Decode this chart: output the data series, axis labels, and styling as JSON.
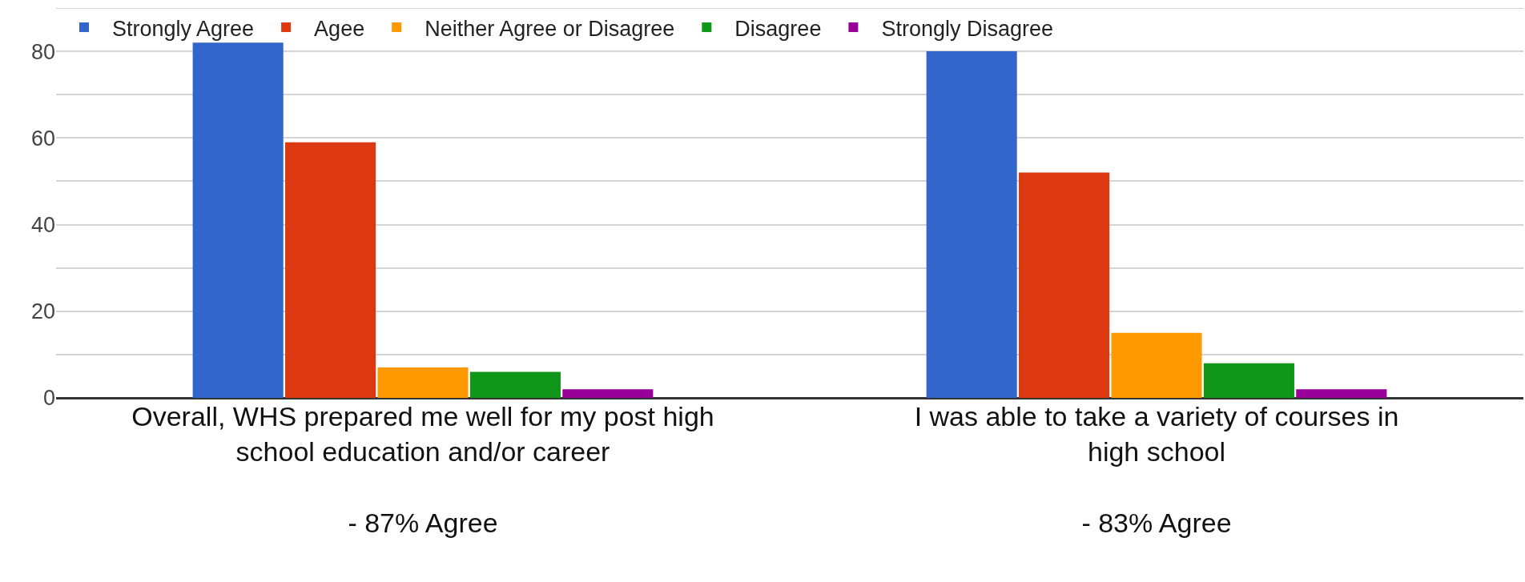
{
  "chart_data": {
    "type": "bar",
    "categories": [
      "Overall, WHS prepared me well for my post high\nschool education and/or career\n\n- 87% Agree",
      "I was able to take a variety of courses in\nhigh school\n\n- 83% Agree"
    ],
    "series": [
      {
        "name": "Strongly Agree",
        "color": "#3366cc",
        "values": [
          82,
          80
        ]
      },
      {
        "name": "Agee",
        "color": "#dc3912",
        "values": [
          59,
          52
        ]
      },
      {
        "name": "Neither Agree or Disagree",
        "color": "#ff9900",
        "values": [
          7,
          15
        ]
      },
      {
        "name": "Disagree",
        "color": "#109618",
        "values": [
          6,
          8
        ]
      },
      {
        "name": "Strongly Disagree",
        "color": "#990099",
        "values": [
          2,
          2
        ]
      }
    ],
    "ylim": [
      0,
      90
    ],
    "yticks": [
      0,
      {
        "value": 10,
        "label": null
      },
      20,
      {
        "value": 30,
        "label": null
      },
      40,
      {
        "value": 50,
        "label": null
      },
      60,
      {
        "value": 70,
        "label": null
      },
      80,
      {
        "value": 90,
        "label": null
      }
    ],
    "grid": "y",
    "legend": "top"
  }
}
